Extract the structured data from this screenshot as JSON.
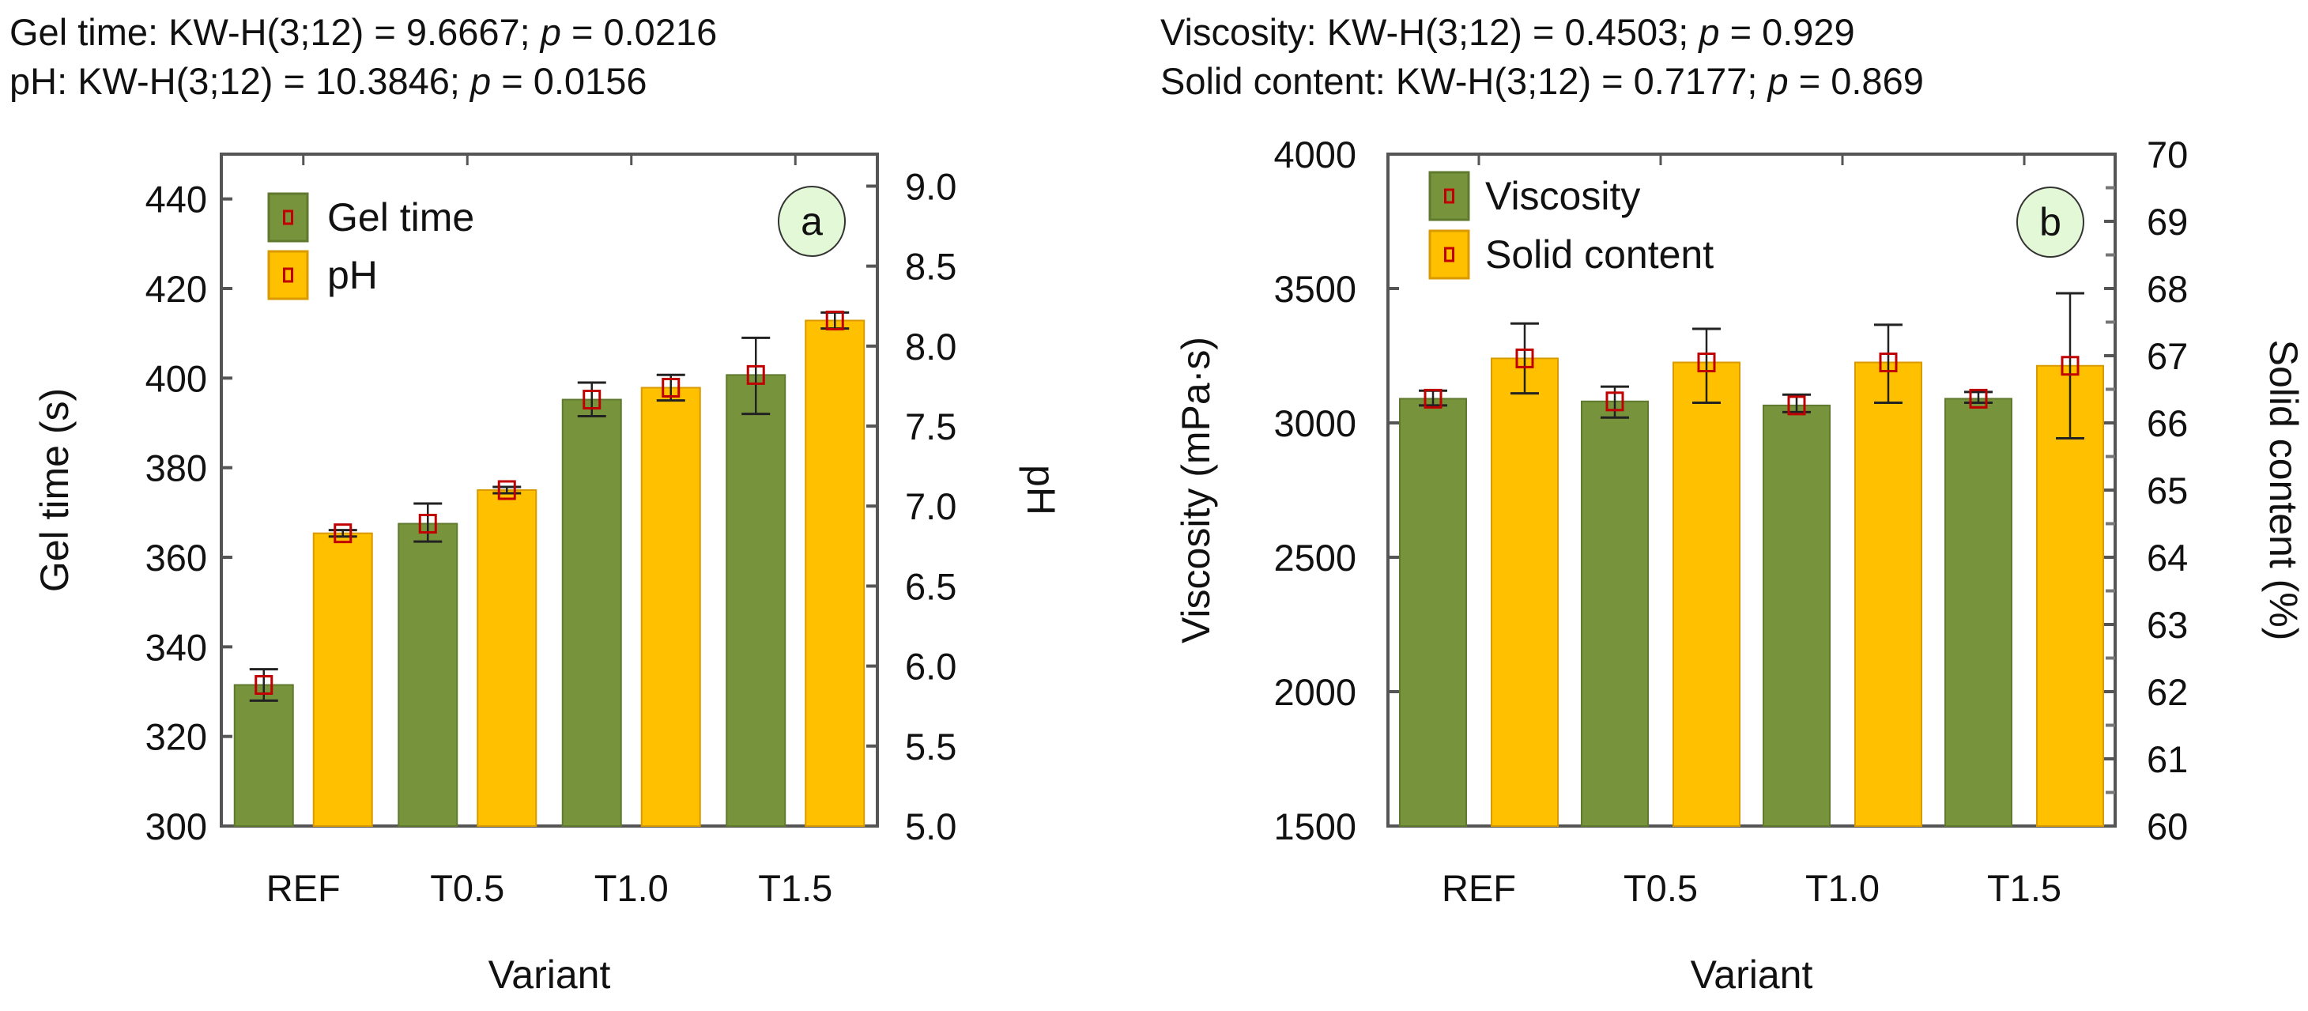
{
  "chart_data": [
    {
      "type": "bar",
      "panel_label": "a",
      "stats": [
        {
          "prefix": "Gel time: KW-H(3;12) = 9.6667; ",
          "p_symbol": "p",
          "suffix": " = 0.0216"
        },
        {
          "prefix": "pH: KW-H(3;12) = 10.3846; ",
          "p_symbol": "p",
          "suffix": " = 0.0156"
        }
      ],
      "categories": [
        "REF",
        "T0.5",
        "T1.0",
        "T1.5"
      ],
      "xlabel": "Variant",
      "ylabel": "Gel time (s)",
      "ylabel_right": "pH",
      "ylim": [
        300,
        450
      ],
      "ylim_right": [
        5.0,
        9.2
      ],
      "yticks": [
        "300",
        "320",
        "340",
        "360",
        "380",
        "400",
        "420",
        "440"
      ],
      "yticks_right": [
        "5.0",
        "5.5",
        "6.0",
        "6.5",
        "7.0",
        "7.5",
        "8.0",
        "8.5",
        "9.0"
      ],
      "legend_position": "top-left",
      "series": [
        {
          "name": "Gel time",
          "axis": "left",
          "color": "#77933c",
          "values": [
            331.5,
            367.5,
            395.2,
            400.7
          ],
          "err_low": [
            328,
            363.5,
            391.5,
            392
          ],
          "err_high": [
            335,
            372,
            399,
            409
          ]
        },
        {
          "name": "pH",
          "axis": "right",
          "color": "#ffc000",
          "values": [
            6.83,
            7.1,
            7.74,
            8.16
          ],
          "err_low": [
            6.81,
            7.08,
            7.66,
            8.11
          ],
          "err_high": [
            6.85,
            7.12,
            7.82,
            8.21
          ]
        }
      ]
    },
    {
      "type": "bar",
      "panel_label": "b",
      "stats": [
        {
          "prefix": "Viscosity: KW-H(3;12) = 0.4503; ",
          "p_symbol": "p",
          "suffix": " = 0.929"
        },
        {
          "prefix": "Solid content: KW-H(3;12) = 0.7177; ",
          "p_symbol": "p",
          "suffix": " = 0.869"
        }
      ],
      "categories": [
        "REF",
        "T0.5",
        "T1.0",
        "T1.5"
      ],
      "xlabel": "Variant",
      "ylabel": "Viscosity (mPa·s)",
      "ylabel_right": "Solid content (%)",
      "ylim": [
        1500,
        4000
      ],
      "ylim_right": [
        60,
        70
      ],
      "yticks": [
        "1500",
        "2000",
        "2500",
        "3000",
        "3500",
        "4000"
      ],
      "yticks_right": [
        "60",
        "61",
        "62",
        "63",
        "64",
        "65",
        "66",
        "67",
        "68",
        "69",
        "70"
      ],
      "legend_position": "top-left",
      "series": [
        {
          "name": "Viscosity",
          "axis": "left",
          "color": "#77933c",
          "values": [
            3090,
            3080,
            3065,
            3090
          ],
          "err_low": [
            3065,
            3020,
            3040,
            3075
          ],
          "err_high": [
            3120,
            3135,
            3105,
            3115
          ]
        },
        {
          "name": "Solid content",
          "axis": "right",
          "color": "#ffc000",
          "values": [
            66.96,
            66.9,
            66.9,
            66.85
          ],
          "err_low": [
            66.44,
            66.3,
            66.3,
            65.77
          ],
          "err_high": [
            67.48,
            67.4,
            67.46,
            67.93
          ]
        }
      ]
    }
  ]
}
